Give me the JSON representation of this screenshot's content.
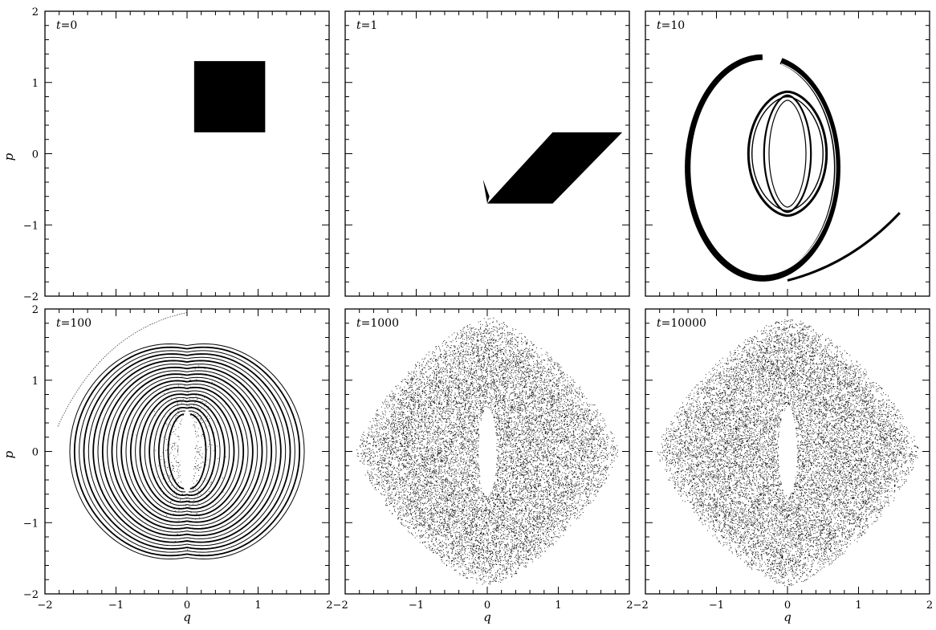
{
  "chart_data": [
    {
      "type": "scatter",
      "panel_label": "t = 0",
      "t_value": "0",
      "xlabel": "",
      "ylabel": "p",
      "xlim": [
        -2,
        2
      ],
      "ylim": [
        -2,
        2
      ],
      "description_kind": "filled-square",
      "series": [
        {
          "region": {
            "q": [
              0.1,
              1.1
            ],
            "p": [
              0.3,
              1.3
            ]
          }
        }
      ]
    },
    {
      "type": "scatter",
      "panel_label": "t = 1",
      "t_value": "1",
      "xlabel": "",
      "ylabel": "",
      "xlim": [
        -2,
        2
      ],
      "ylim": [
        -2,
        2
      ],
      "description_kind": "filled-parallelogram",
      "series": [
        {
          "polygon": [
            [
              0.0,
              -0.7
            ],
            [
              0.92,
              -0.7
            ],
            [
              1.9,
              0.3
            ],
            [
              0.92,
              0.3
            ]
          ],
          "tail": [
            [
              0.0,
              -0.7
            ],
            [
              -0.06,
              -0.36
            ],
            [
              0.03,
              -0.6
            ]
          ]
        }
      ]
    },
    {
      "type": "scatter",
      "panel_label": "t = 10",
      "t_value": "10",
      "xlabel": "",
      "ylabel": "",
      "xlim": [
        -2,
        2
      ],
      "ylim": [
        -2,
        2
      ],
      "description_kind": "stretched-filaments"
    },
    {
      "type": "scatter",
      "panel_label": "t = 100",
      "t_value": "100",
      "xlabel": "q",
      "ylabel": "p",
      "xlim": [
        -2,
        2
      ],
      "ylim": [
        -2,
        2
      ],
      "description_kind": "nested-lens-curves"
    },
    {
      "type": "scatter",
      "panel_label": "t = 1000",
      "t_value": "1000",
      "xlabel": "q",
      "ylabel": "",
      "xlim": [
        -2,
        2
      ],
      "ylim": [
        -2,
        2
      ],
      "description_kind": "diffuse-point-cloud"
    },
    {
      "type": "scatter",
      "panel_label": "t = 10000",
      "t_value": "10000",
      "xlabel": "q",
      "ylabel": "",
      "xlim": [
        -2,
        2
      ],
      "ylim": [
        -2,
        2
      ],
      "description_kind": "diffuse-point-cloud"
    }
  ],
  "axes": {
    "x_ticks": [
      -2,
      -1,
      0,
      1,
      2
    ],
    "y_ticks": [
      -2,
      -1,
      0,
      1,
      2
    ],
    "x_tick_labels": [
      "−2",
      "−1",
      "0",
      "1",
      "2"
    ],
    "y_tick_labels": [
      "−2",
      "−1",
      "0",
      "1",
      "2"
    ],
    "xlabel": "q",
    "ylabel": "p"
  },
  "colors": {
    "ink": "#000000",
    "background": "#ffffff"
  }
}
